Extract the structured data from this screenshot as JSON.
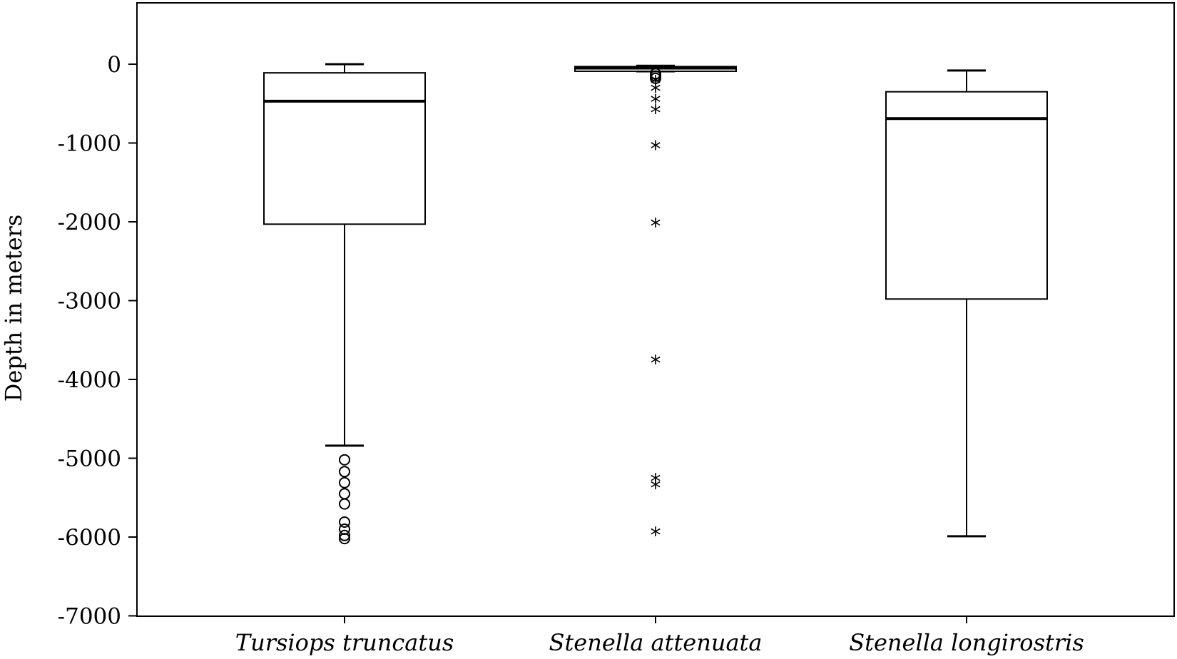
{
  "chart_data": {
    "type": "boxplot",
    "title": "",
    "xlabel": "",
    "ylabel": "Depth in meters",
    "ylim": [
      -7000,
      800
    ],
    "yticks": [
      0,
      -1000,
      -2000,
      -3000,
      -4000,
      -5000,
      -6000,
      -7000
    ],
    "ytick_labels": [
      "0",
      "-1000",
      "-2000",
      "-3000",
      "-4000",
      "-5000",
      "-6000",
      "-7000"
    ],
    "grid": false,
    "legend": "none",
    "categories": [
      "Tursiops truncatus",
      "Stenella attenuata",
      "Stenella longirostris"
    ],
    "boxes": [
      {
        "category": "Tursiops truncatus",
        "whisker_high": 0,
        "q3": -110,
        "median": -470,
        "q1": -2030,
        "whisker_low": -4840,
        "outliers_circle": [
          -5020,
          -5170,
          -5310,
          -5450,
          -5580,
          -5810,
          -5900,
          -5980,
          -6020
        ],
        "outliers_star": []
      },
      {
        "category": "Stenella attenuata",
        "whisker_high": -20,
        "q3": -30,
        "median": -50,
        "q1": -90,
        "whisker_low": -90,
        "outliers_circle": [
          -120,
          -150,
          -180
        ],
        "outliers_star": [
          -230,
          -330,
          -470,
          -600,
          -1060,
          -2040,
          -3780,
          -5280,
          -5360,
          -5960
        ]
      },
      {
        "category": "Stenella longirostris",
        "whisker_high": -80,
        "q3": -350,
        "median": -690,
        "q1": -2980,
        "whisker_low": -5990,
        "outliers_circle": [],
        "outliers_star": []
      }
    ]
  }
}
